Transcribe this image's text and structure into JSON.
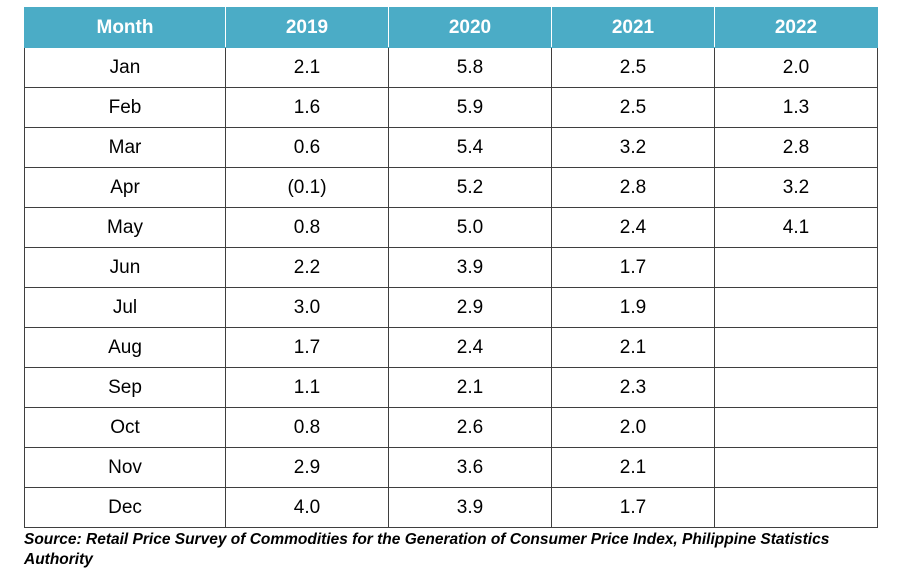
{
  "chart_data": {
    "type": "table",
    "columns": [
      "Month",
      "2019",
      "2020",
      "2021",
      "2022"
    ],
    "rows": [
      [
        "Jan",
        "2.1",
        "5.8",
        "2.5",
        "2.0"
      ],
      [
        "Feb",
        "1.6",
        "5.9",
        "2.5",
        "1.3"
      ],
      [
        "Mar",
        "0.6",
        "5.4",
        "3.2",
        "2.8"
      ],
      [
        "Apr",
        "(0.1)",
        "5.2",
        "2.8",
        "3.2"
      ],
      [
        "May",
        "0.8",
        "5.0",
        "2.4",
        "4.1"
      ],
      [
        "Jun",
        "2.2",
        "3.9",
        "1.7",
        ""
      ],
      [
        "Jul",
        "3.0",
        "2.9",
        "1.9",
        ""
      ],
      [
        "Aug",
        "1.7",
        "2.4",
        "2.1",
        ""
      ],
      [
        "Sep",
        "1.1",
        "2.1",
        "2.3",
        ""
      ],
      [
        "Oct",
        "0.8",
        "2.6",
        "2.0",
        ""
      ],
      [
        "Nov",
        "2.9",
        "3.6",
        "2.1",
        ""
      ],
      [
        "Dec",
        "4.0",
        "3.9",
        "1.7",
        ""
      ]
    ],
    "source": "Source: Retail Price Survey of Commodities for the Generation of Consumer Price Index, Philippine Statistics Authority"
  },
  "colors": {
    "header_background": "#4bacc6",
    "header_text": "#ffffff",
    "border": "#3f3f3f"
  }
}
